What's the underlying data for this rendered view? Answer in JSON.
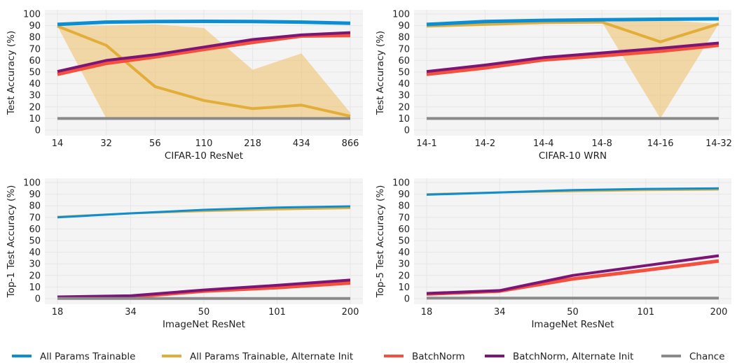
{
  "colors": {
    "All Params Trainable": "#0b8ed4",
    "All Params Trainable, Alternate Init": "#e3ad3a",
    "BatchNorm": "#f5503c",
    "BatchNorm, Alternate Init": "#7b1576",
    "Chance": "#8a8a8a",
    "band": "#edc36f",
    "grid": "#e6e6e6",
    "plot_bg": "#f4f4f4"
  },
  "legend": [
    "All Params Trainable",
    "All Params Trainable, Alternate Init",
    "BatchNorm",
    "BatchNorm, Alternate Init",
    "Chance"
  ],
  "chart_data": [
    {
      "type": "line",
      "xlabel": "CIFAR-10 ResNet",
      "ylabel": "Test Accuracy (%)",
      "categories": [
        "14",
        "32",
        "56",
        "110",
        "218",
        "434",
        "866"
      ],
      "ylim": [
        0,
        100
      ],
      "yticks": [
        0,
        10,
        20,
        30,
        40,
        50,
        60,
        70,
        80,
        90,
        100
      ],
      "grid": true,
      "series": [
        {
          "name": "All Params Trainable",
          "values": [
            91,
            93,
            93.5,
            93.7,
            93.5,
            93,
            92
          ],
          "width": 5
        },
        {
          "name": "All Params Trainable, Alternate Init",
          "values": [
            89.5,
            73,
            37.5,
            25.5,
            18.5,
            21.5,
            12
          ],
          "width": 4,
          "band_low": [
            89.5,
            10,
            10,
            10,
            10,
            10,
            10
          ],
          "band_high": [
            89.5,
            90,
            91,
            88,
            52,
            66,
            15
          ]
        },
        {
          "name": "BatchNorm",
          "values": [
            48,
            57.5,
            63,
            69.5,
            75.5,
            81,
            81.5
          ],
          "width": 5
        },
        {
          "name": "BatchNorm, Alternate Init",
          "values": [
            50.5,
            60,
            65,
            71.5,
            78,
            82,
            84
          ],
          "width": 4
        },
        {
          "name": "Chance",
          "values": [
            10,
            10,
            10,
            10,
            10,
            10,
            10
          ],
          "width": 4
        }
      ]
    },
    {
      "type": "line",
      "xlabel": "CIFAR-10 WRN",
      "ylabel": "Test Accuracy (%)",
      "categories": [
        "14-1",
        "14-2",
        "14-4",
        "14-8",
        "14-16",
        "14-32"
      ],
      "ylim": [
        0,
        100
      ],
      "yticks": [
        0,
        10,
        20,
        30,
        40,
        50,
        60,
        70,
        80,
        90,
        100
      ],
      "grid": true,
      "series": [
        {
          "name": "All Params Trainable",
          "values": [
            91,
            93.5,
            94.5,
            95,
            95.5,
            95.8
          ],
          "width": 5
        },
        {
          "name": "All Params Trainable, Alternate Init",
          "values": [
            89.5,
            91,
            92.5,
            93,
            76,
            91.5
          ],
          "width": 4,
          "band_low": [
            89.5,
            91,
            92.5,
            93,
            10,
            91.5
          ],
          "band_high": [
            89.5,
            91,
            92.5,
            93,
            95,
            91.5
          ]
        },
        {
          "name": "BatchNorm",
          "values": [
            48,
            53.5,
            60.5,
            64,
            68,
            73
          ],
          "width": 5
        },
        {
          "name": "BatchNorm, Alternate Init",
          "values": [
            50.5,
            56,
            62.5,
            66.5,
            70.5,
            75
          ],
          "width": 4
        },
        {
          "name": "Chance",
          "values": [
            10,
            10,
            10,
            10,
            10,
            10
          ],
          "width": 4
        }
      ]
    },
    {
      "type": "line",
      "xlabel": "ImageNet ResNet",
      "ylabel": "Top-1 Test Accuracy (%)",
      "categories": [
        "18",
        "34",
        "50",
        "101",
        "200"
      ],
      "ylim": [
        0,
        100
      ],
      "yticks": [
        0,
        10,
        20,
        30,
        40,
        50,
        60,
        70,
        80,
        90,
        100
      ],
      "grid": true,
      "series": [
        {
          "name": "All Params Trainable",
          "values": [
            70,
            73.5,
            76.5,
            78.5,
            79.5
          ],
          "width": 3
        },
        {
          "name": "All Params Trainable, Alternate Init",
          "values": [
            70.5,
            73.5,
            75.5,
            77,
            78
          ],
          "width": 3
        },
        {
          "name": "BatchNorm",
          "values": [
            1,
            1.5,
            6.5,
            9.5,
            13.5
          ],
          "width": 5
        },
        {
          "name": "BatchNorm, Alternate Init",
          "values": [
            1.5,
            2.5,
            7.5,
            11.5,
            16
          ],
          "width": 4
        },
        {
          "name": "Chance",
          "values": [
            0.1,
            0.1,
            0.1,
            0.1,
            0.1
          ],
          "width": 4
        }
      ]
    },
    {
      "type": "line",
      "xlabel": "ImageNet ResNet",
      "ylabel": "Top-5 Test Accuracy (%)",
      "categories": [
        "18",
        "34",
        "50",
        "101",
        "200"
      ],
      "ylim": [
        0,
        100
      ],
      "yticks": [
        0,
        10,
        20,
        30,
        40,
        50,
        60,
        70,
        80,
        90,
        100
      ],
      "grid": true,
      "series": [
        {
          "name": "All Params Trainable",
          "values": [
            89.5,
            91.5,
            93.5,
            94.5,
            95
          ],
          "width": 3
        },
        {
          "name": "All Params Trainable, Alternate Init",
          "values": [
            90,
            91.5,
            92.5,
            93.5,
            94
          ],
          "width": 3
        },
        {
          "name": "BatchNorm",
          "values": [
            4,
            6.5,
            17,
            24.5,
            32.5
          ],
          "width": 5
        },
        {
          "name": "BatchNorm, Alternate Init",
          "values": [
            4.5,
            7,
            20,
            28.5,
            37
          ],
          "width": 4
        },
        {
          "name": "Chance",
          "values": [
            0.5,
            0.5,
            0.5,
            0.5,
            0.5
          ],
          "width": 4
        }
      ]
    }
  ]
}
